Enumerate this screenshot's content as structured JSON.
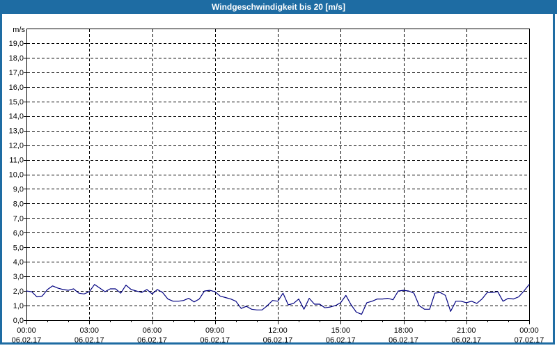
{
  "window": {
    "title": "Windgeschwindigkeit bis 20 [m/s]"
  },
  "colors": {
    "titlebar_bg": "#1e6ca3",
    "titlebar_text": "#ffffff",
    "frame_border": "#1e6ca3",
    "plot_bg": "#ffffff",
    "axis_and_grid": "#000000",
    "tick_label_text": "#000000",
    "line": "#000080"
  },
  "chart_data": {
    "type": "line",
    "title": "Windgeschwindigkeit bis 20 [m/s]",
    "ylabel": "m/s",
    "ylim": [
      0,
      20
    ],
    "y_tick_step": 1,
    "y_tick_labels": [
      "0,0",
      "1,0",
      "2,0",
      "3,0",
      "4,0",
      "5,0",
      "6,0",
      "7,0",
      "8,0",
      "9,0",
      "10,0",
      "11,0",
      "12,0",
      "13,0",
      "14,0",
      "15,0",
      "16,0",
      "17,0",
      "18,0",
      "19,0"
    ],
    "x_axis": {
      "range_hours": [
        0,
        24
      ],
      "major_tick_every_hours": 3,
      "minor_tick_every_hours": 1,
      "ticks": [
        {
          "hours": 0,
          "time": "00:00",
          "date": "06.02.17"
        },
        {
          "hours": 3,
          "time": "03:00",
          "date": "06.02.17"
        },
        {
          "hours": 6,
          "time": "06:00",
          "date": "06.02.17"
        },
        {
          "hours": 9,
          "time": "09:00",
          "date": "06.02.17"
        },
        {
          "hours": 12,
          "time": "12:00",
          "date": "06.02.17"
        },
        {
          "hours": 15,
          "time": "15:00",
          "date": "06.02.17"
        },
        {
          "hours": 18,
          "time": "18:00",
          "date": "06.02.17"
        },
        {
          "hours": 21,
          "time": "21:00",
          "date": "06.02.17"
        },
        {
          "hours": 24,
          "time": "00:00",
          "date": "07.02.17"
        }
      ]
    },
    "grid": {
      "horizontal": "dashed",
      "vertical": "dashed",
      "on": true
    },
    "legend": "none",
    "series": [
      {
        "name": "Windgeschwindigkeit",
        "unit": "m/s",
        "x_hours": [
          0,
          0.25,
          0.5,
          0.75,
          1,
          1.25,
          1.5,
          1.75,
          2,
          2.25,
          2.5,
          2.75,
          3,
          3.25,
          3.5,
          3.75,
          4,
          4.25,
          4.5,
          4.75,
          5,
          5.25,
          5.5,
          5.75,
          6,
          6.25,
          6.5,
          6.75,
          7,
          7.25,
          7.5,
          7.75,
          8,
          8.25,
          8.5,
          8.75,
          9,
          9.25,
          9.5,
          9.75,
          10,
          10.25,
          10.5,
          10.75,
          11,
          11.25,
          11.5,
          11.75,
          12,
          12.25,
          12.5,
          12.75,
          13,
          13.25,
          13.5,
          13.75,
          14,
          14.25,
          14.5,
          14.75,
          15,
          15.25,
          15.5,
          15.75,
          16,
          16.25,
          16.5,
          16.75,
          17,
          17.25,
          17.5,
          17.75,
          18,
          18.25,
          18.5,
          18.75,
          19,
          19.25,
          19.5,
          19.75,
          20,
          20.25,
          20.5,
          20.75,
          21,
          21.25,
          21.5,
          21.75,
          22,
          22.25,
          22.5,
          22.75,
          23,
          23.25,
          23.5,
          23.75,
          24
        ],
        "values": [
          2.0,
          1.95,
          1.6,
          1.65,
          2.1,
          2.35,
          2.2,
          2.1,
          2.05,
          2.15,
          1.85,
          1.8,
          1.95,
          2.45,
          2.2,
          1.95,
          2.15,
          2.15,
          1.85,
          2.4,
          2.1,
          2.0,
          1.9,
          2.1,
          1.8,
          2.1,
          1.9,
          1.45,
          1.3,
          1.3,
          1.35,
          1.5,
          1.25,
          1.45,
          2.0,
          2.05,
          1.95,
          1.65,
          1.55,
          1.45,
          1.3,
          0.8,
          0.95,
          0.75,
          0.7,
          0.7,
          1.0,
          1.35,
          1.3,
          1.85,
          1.05,
          1.15,
          1.45,
          0.75,
          1.5,
          1.1,
          1.1,
          0.85,
          0.9,
          1.0,
          1.2,
          1.7,
          1.05,
          0.55,
          0.4,
          1.2,
          1.3,
          1.45,
          1.45,
          1.5,
          1.4,
          2.0,
          2.05,
          2.0,
          1.85,
          1.0,
          0.75,
          0.75,
          1.85,
          1.9,
          1.7,
          0.6,
          1.3,
          1.3,
          1.2,
          1.3,
          1.15,
          1.45,
          1.9,
          1.9,
          1.95,
          1.3,
          1.5,
          1.45,
          1.6,
          2.0,
          2.45
        ]
      }
    ]
  }
}
